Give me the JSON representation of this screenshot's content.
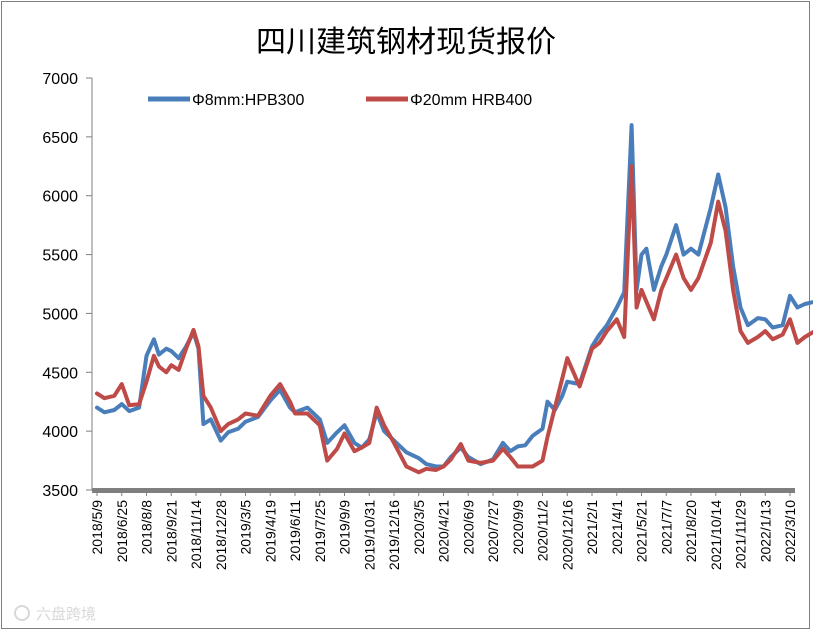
{
  "chart_data": {
    "type": "line",
    "title": "四川建筑钢材现货报价",
    "xlabel": "",
    "ylabel": "",
    "ylim": [
      3500,
      7000
    ],
    "yticks": [
      3500,
      4000,
      4500,
      5000,
      5500,
      6000,
      6500,
      7000
    ],
    "x_tick_labels": [
      "2018/5/9",
      "2018/6/25",
      "2018/8/8",
      "2018/9/21",
      "2018/11/14",
      "2018/12/28",
      "2019/3/5",
      "2019/4/19",
      "2019/6/11",
      "2019/7/25",
      "2019/9/9",
      "2019/10/31",
      "2019/12/16",
      "2020/3/5",
      "2020/4/21",
      "2020/6/9",
      "2020/7/27",
      "2020/9/9",
      "2020/11/2",
      "2020/12/16",
      "2021/2/1",
      "2021/4/1",
      "2021/5/21",
      "2021/7/7",
      "2021/8/20",
      "2021/10/14",
      "2021/11/29",
      "2022/1/13",
      "2022/3/10"
    ],
    "legend_position": "top-left",
    "grid": false,
    "series": [
      {
        "name": "Φ8mm:HPB300",
        "color": "#4a7ebb",
        "points": [
          [
            0,
            4200
          ],
          [
            0.3,
            4160
          ],
          [
            0.7,
            4180
          ],
          [
            1.0,
            4230
          ],
          [
            1.3,
            4170
          ],
          [
            1.7,
            4200
          ],
          [
            2.0,
            4640
          ],
          [
            2.3,
            4780
          ],
          [
            2.5,
            4650
          ],
          [
            2.8,
            4700
          ],
          [
            3.0,
            4680
          ],
          [
            3.3,
            4620
          ],
          [
            3.6,
            4720
          ],
          [
            3.9,
            4840
          ],
          [
            4.1,
            4700
          ],
          [
            4.3,
            4060
          ],
          [
            4.6,
            4100
          ],
          [
            5.0,
            3920
          ],
          [
            5.3,
            3990
          ],
          [
            5.7,
            4020
          ],
          [
            6.0,
            4080
          ],
          [
            6.5,
            4120
          ],
          [
            7.0,
            4260
          ],
          [
            7.4,
            4350
          ],
          [
            7.8,
            4200
          ],
          [
            8.0,
            4160
          ],
          [
            8.5,
            4200
          ],
          [
            9.0,
            4100
          ],
          [
            9.3,
            3900
          ],
          [
            9.7,
            3990
          ],
          [
            10.0,
            4050
          ],
          [
            10.4,
            3900
          ],
          [
            10.7,
            3860
          ],
          [
            11.0,
            3930
          ],
          [
            11.3,
            4160
          ],
          [
            11.6,
            4000
          ],
          [
            12.0,
            3920
          ],
          [
            12.5,
            3820
          ],
          [
            13.0,
            3770
          ],
          [
            13.3,
            3720
          ],
          [
            13.7,
            3700
          ],
          [
            14.0,
            3700
          ],
          [
            14.3,
            3780
          ],
          [
            14.7,
            3860
          ],
          [
            15.0,
            3780
          ],
          [
            15.5,
            3720
          ],
          [
            16.0,
            3760
          ],
          [
            16.4,
            3900
          ],
          [
            16.7,
            3830
          ],
          [
            17.0,
            3870
          ],
          [
            17.3,
            3880
          ],
          [
            17.6,
            3960
          ],
          [
            18.0,
            4020
          ],
          [
            18.2,
            4250
          ],
          [
            18.5,
            4180
          ],
          [
            18.8,
            4300
          ],
          [
            19.0,
            4420
          ],
          [
            19.5,
            4400
          ],
          [
            20.0,
            4720
          ],
          [
            20.3,
            4820
          ],
          [
            20.6,
            4900
          ],
          [
            21.0,
            5050
          ],
          [
            21.3,
            5180
          ],
          [
            21.6,
            6600
          ],
          [
            21.8,
            5200
          ],
          [
            22.0,
            5500
          ],
          [
            22.2,
            5550
          ],
          [
            22.5,
            5200
          ],
          [
            22.8,
            5400
          ],
          [
            23.0,
            5500
          ],
          [
            23.4,
            5750
          ],
          [
            23.7,
            5500
          ],
          [
            24.0,
            5550
          ],
          [
            24.3,
            5500
          ],
          [
            24.8,
            5900
          ],
          [
            25.1,
            6180
          ],
          [
            25.4,
            5900
          ],
          [
            25.7,
            5400
          ],
          [
            26.0,
            5050
          ],
          [
            26.3,
            4900
          ],
          [
            26.7,
            4960
          ],
          [
            27.0,
            4950
          ],
          [
            27.3,
            4880
          ],
          [
            27.7,
            4900
          ],
          [
            28.0,
            5150
          ],
          [
            28.3,
            5050
          ],
          [
            28.6,
            5080
          ],
          [
            29.0,
            5100
          ]
        ]
      },
      {
        "name": "Φ20mm HRB400",
        "color": "#be4b48",
        "points": [
          [
            0,
            4320
          ],
          [
            0.3,
            4280
          ],
          [
            0.7,
            4300
          ],
          [
            1.0,
            4400
          ],
          [
            1.3,
            4220
          ],
          [
            1.7,
            4230
          ],
          [
            2.0,
            4420
          ],
          [
            2.3,
            4640
          ],
          [
            2.5,
            4550
          ],
          [
            2.8,
            4500
          ],
          [
            3.0,
            4560
          ],
          [
            3.3,
            4520
          ],
          [
            3.6,
            4700
          ],
          [
            3.9,
            4860
          ],
          [
            4.1,
            4720
          ],
          [
            4.3,
            4300
          ],
          [
            4.6,
            4200
          ],
          [
            5.0,
            4000
          ],
          [
            5.3,
            4060
          ],
          [
            5.7,
            4100
          ],
          [
            6.0,
            4150
          ],
          [
            6.5,
            4130
          ],
          [
            7.0,
            4300
          ],
          [
            7.4,
            4400
          ],
          [
            7.8,
            4250
          ],
          [
            8.0,
            4150
          ],
          [
            8.5,
            4150
          ],
          [
            9.0,
            4050
          ],
          [
            9.3,
            3750
          ],
          [
            9.7,
            3850
          ],
          [
            10.0,
            3980
          ],
          [
            10.4,
            3830
          ],
          [
            10.7,
            3860
          ],
          [
            11.0,
            3900
          ],
          [
            11.3,
            4200
          ],
          [
            11.6,
            4050
          ],
          [
            12.0,
            3900
          ],
          [
            12.5,
            3700
          ],
          [
            13.0,
            3650
          ],
          [
            13.3,
            3680
          ],
          [
            13.7,
            3670
          ],
          [
            14.0,
            3700
          ],
          [
            14.3,
            3760
          ],
          [
            14.7,
            3890
          ],
          [
            15.0,
            3750
          ],
          [
            15.5,
            3730
          ],
          [
            16.0,
            3750
          ],
          [
            16.4,
            3850
          ],
          [
            16.7,
            3780
          ],
          [
            17.0,
            3700
          ],
          [
            17.3,
            3700
          ],
          [
            17.6,
            3700
          ],
          [
            18.0,
            3750
          ],
          [
            18.2,
            3950
          ],
          [
            18.5,
            4200
          ],
          [
            18.8,
            4450
          ],
          [
            19.0,
            4620
          ],
          [
            19.5,
            4380
          ],
          [
            20.0,
            4700
          ],
          [
            20.3,
            4750
          ],
          [
            20.6,
            4850
          ],
          [
            21.0,
            4950
          ],
          [
            21.3,
            4800
          ],
          [
            21.6,
            6250
          ],
          [
            21.8,
            5050
          ],
          [
            22.0,
            5200
          ],
          [
            22.2,
            5100
          ],
          [
            22.5,
            4950
          ],
          [
            22.8,
            5200
          ],
          [
            23.0,
            5300
          ],
          [
            23.4,
            5500
          ],
          [
            23.7,
            5300
          ],
          [
            24.0,
            5200
          ],
          [
            24.3,
            5300
          ],
          [
            24.8,
            5600
          ],
          [
            25.1,
            5950
          ],
          [
            25.4,
            5700
          ],
          [
            25.7,
            5200
          ],
          [
            26.0,
            4850
          ],
          [
            26.3,
            4750
          ],
          [
            26.7,
            4800
          ],
          [
            27.0,
            4850
          ],
          [
            27.3,
            4780
          ],
          [
            27.7,
            4820
          ],
          [
            28.0,
            4950
          ],
          [
            28.3,
            4750
          ],
          [
            28.6,
            4800
          ],
          [
            29.0,
            4850
          ]
        ]
      }
    ]
  },
  "watermark": "六盘跨境"
}
